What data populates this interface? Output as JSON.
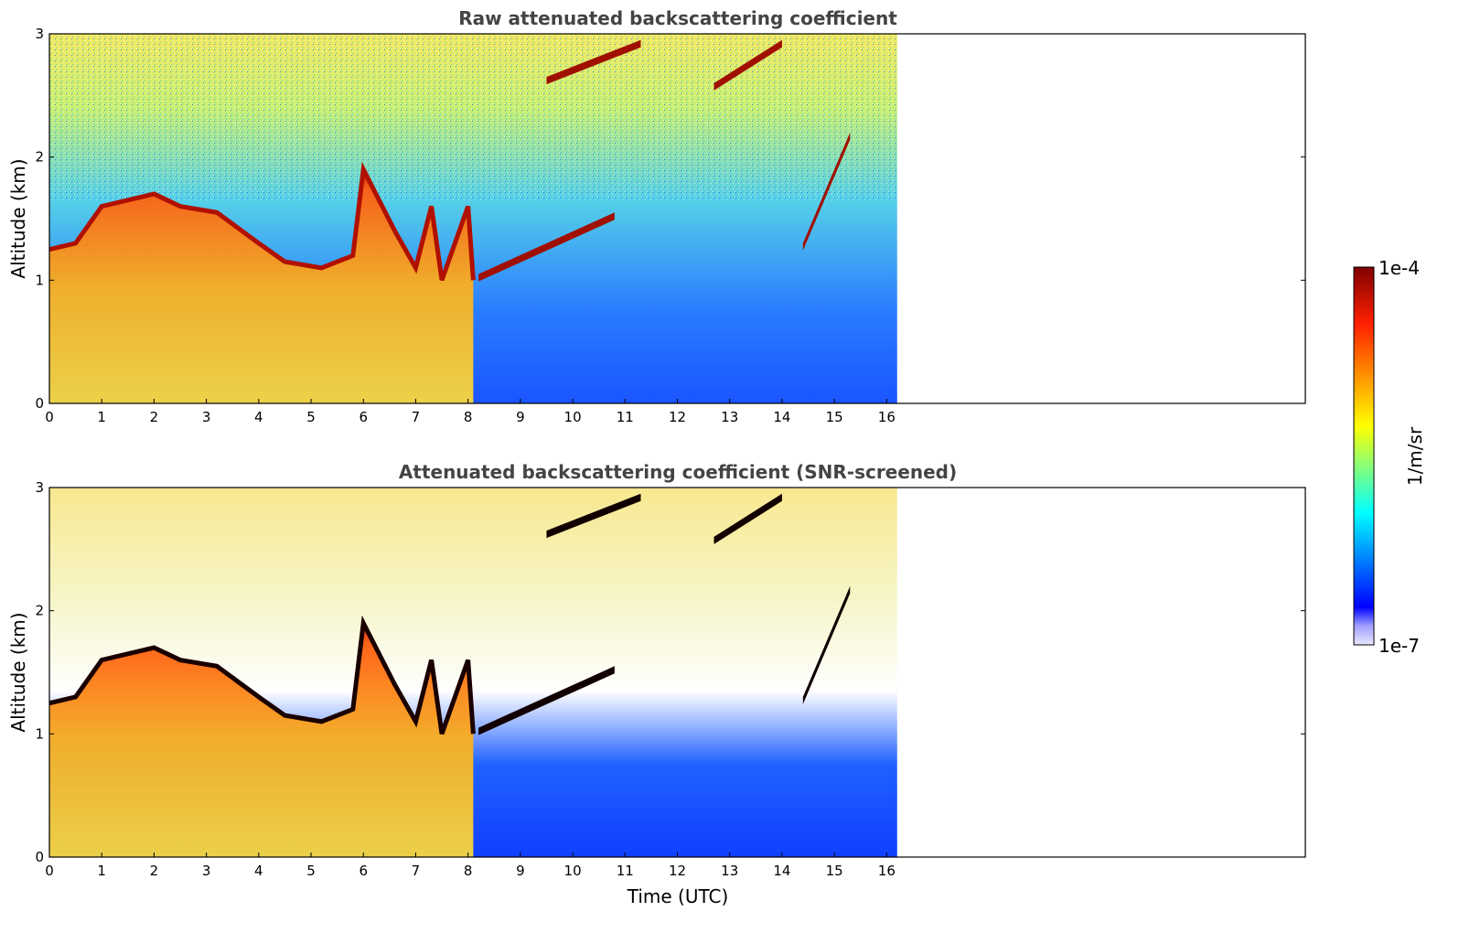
{
  "chart_data": [
    {
      "type": "heatmap",
      "title": "Raw attenuated backscattering coefficient",
      "xlabel": "",
      "ylabel": "Altitude (km)",
      "xlim": [
        0,
        24
      ],
      "ylim": [
        0,
        3
      ],
      "x_data_end": 16.2,
      "xticks": [
        "0",
        "1",
        "2",
        "3",
        "4",
        "5",
        "6",
        "7",
        "8",
        "9",
        "10",
        "11",
        "12",
        "13",
        "14",
        "15",
        "16"
      ],
      "yticks": [
        "0",
        "1",
        "2",
        "3"
      ],
      "screened": false,
      "boundary_layer_top": [
        {
          "x": 0.0,
          "y": 1.25
        },
        {
          "x": 0.5,
          "y": 1.3
        },
        {
          "x": 1.0,
          "y": 1.6
        },
        {
          "x": 2.0,
          "y": 1.7
        },
        {
          "x": 2.5,
          "y": 1.6
        },
        {
          "x": 3.2,
          "y": 1.55
        },
        {
          "x": 4.0,
          "y": 1.3
        },
        {
          "x": 4.5,
          "y": 1.15
        },
        {
          "x": 5.2,
          "y": 1.1
        },
        {
          "x": 5.8,
          "y": 1.2
        },
        {
          "x": 6.0,
          "y": 1.9
        },
        {
          "x": 6.6,
          "y": 1.4
        },
        {
          "x": 7.0,
          "y": 1.1
        },
        {
          "x": 7.3,
          "y": 1.6
        },
        {
          "x": 7.5,
          "y": 1.0
        },
        {
          "x": 8.0,
          "y": 1.6
        },
        {
          "x": 8.1,
          "y": 1.0
        }
      ],
      "cloud_layers": [
        {
          "x_start": 8.2,
          "x_end": 10.8,
          "y_start": 1.05,
          "y_end": 1.55
        },
        {
          "x_start": 9.5,
          "x_end": 11.3,
          "y_start": 2.65,
          "y_end": 2.95
        },
        {
          "x_start": 12.7,
          "x_end": 14.0,
          "y_start": 2.6,
          "y_end": 2.95
        },
        {
          "x_start": 14.4,
          "x_end": 15.3,
          "y_start": 1.3,
          "y_end": 2.2
        }
      ]
    },
    {
      "type": "heatmap",
      "title": "Attenuated backscattering coefficient (SNR-screened)",
      "xlabel": "Time (UTC)",
      "ylabel": "Altitude (km)",
      "xlim": [
        0,
        24
      ],
      "ylim": [
        0,
        3
      ],
      "x_data_end": 16.2,
      "xticks": [
        "0",
        "1",
        "2",
        "3",
        "4",
        "5",
        "6",
        "7",
        "8",
        "9",
        "10",
        "11",
        "12",
        "13",
        "14",
        "15",
        "16"
      ],
      "yticks": [
        "0",
        "1",
        "2",
        "3"
      ],
      "screened": true,
      "boundary_layer_top": [
        {
          "x": 0.0,
          "y": 1.25
        },
        {
          "x": 0.5,
          "y": 1.3
        },
        {
          "x": 1.0,
          "y": 1.6
        },
        {
          "x": 2.0,
          "y": 1.7
        },
        {
          "x": 2.5,
          "y": 1.6
        },
        {
          "x": 3.2,
          "y": 1.55
        },
        {
          "x": 4.0,
          "y": 1.3
        },
        {
          "x": 4.5,
          "y": 1.15
        },
        {
          "x": 5.2,
          "y": 1.1
        },
        {
          "x": 5.8,
          "y": 1.2
        },
        {
          "x": 6.0,
          "y": 1.9
        },
        {
          "x": 6.6,
          "y": 1.4
        },
        {
          "x": 7.0,
          "y": 1.1
        },
        {
          "x": 7.3,
          "y": 1.6
        },
        {
          "x": 7.5,
          "y": 1.0
        },
        {
          "x": 8.0,
          "y": 1.6
        },
        {
          "x": 8.1,
          "y": 1.0
        }
      ],
      "cloud_layers": [
        {
          "x_start": 8.2,
          "x_end": 10.8,
          "y_start": 1.05,
          "y_end": 1.55
        },
        {
          "x_start": 9.5,
          "x_end": 11.3,
          "y_start": 2.65,
          "y_end": 2.95
        },
        {
          "x_start": 12.7,
          "x_end": 14.0,
          "y_start": 2.6,
          "y_end": 2.95
        },
        {
          "x_start": 14.4,
          "x_end": 15.3,
          "y_start": 1.3,
          "y_end": 2.2
        }
      ]
    }
  ],
  "colorbar": {
    "label": "1/m/sr",
    "min_label": "1e-7",
    "max_label": "1e-4",
    "colormap": "jet",
    "colors": [
      "#e8e8ff",
      "#0000ff",
      "#00ffff",
      "#ffff00",
      "#ff0000",
      "#800000"
    ]
  }
}
